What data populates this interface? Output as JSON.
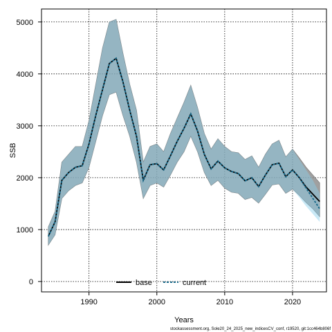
{
  "chart_data": {
    "type": "line",
    "xlabel": "Years",
    "ylabel": "SSB",
    "xlim": [
      1983,
      2025
    ],
    "ylim": [
      -200,
      5250
    ],
    "xticks": [
      1990,
      2000,
      2010,
      2020
    ],
    "yticks": [
      0,
      1000,
      2000,
      3000,
      4000,
      5000
    ],
    "grid": true,
    "legend_position": "bottom-center",
    "footnote": "stockassessment.org, Sole20_24_2025_new_indicesCV_conf, r19520, git:1cc464b806f",
    "x": [
      1984,
      1985,
      1986,
      1987,
      1988,
      1989,
      1990,
      1991,
      1992,
      1993,
      1994,
      1995,
      1996,
      1997,
      1998,
      1999,
      2000,
      2001,
      2002,
      2003,
      2004,
      2005,
      2006,
      2007,
      2008,
      2009,
      2010,
      2011,
      2012,
      2013,
      2014,
      2015,
      2016,
      2017,
      2018,
      2019,
      2020,
      2021,
      2022,
      2023,
      2024
    ],
    "series": [
      {
        "name": "base",
        "color": "#000000",
        "style": "solid",
        "band_color": "#808080",
        "values": [
          870,
          1150,
          1950,
          2100,
          2200,
          2230,
          2650,
          3200,
          3700,
          4200,
          4300,
          3850,
          3300,
          2800,
          1950,
          2250,
          2270,
          2150,
          2420,
          2700,
          2950,
          3230,
          2900,
          2450,
          2170,
          2320,
          2190,
          2120,
          2080,
          1940,
          2000,
          1830,
          2050,
          2250,
          2280,
          2020,
          2150,
          2000,
          1820,
          1680,
          1540
        ],
        "lower": [
          700,
          900,
          1600,
          1750,
          1850,
          1900,
          2200,
          2700,
          3200,
          3600,
          3650,
          3200,
          2800,
          2300,
          1600,
          1850,
          1900,
          1820,
          2050,
          2300,
          2500,
          2800,
          2500,
          2100,
          1850,
          1950,
          1800,
          1720,
          1700,
          1580,
          1620,
          1510,
          1680,
          1860,
          1880,
          1700,
          1780,
          1660,
          1520,
          1400,
          1250
        ],
        "upper": [
          1050,
          1350,
          2300,
          2450,
          2600,
          2600,
          3100,
          3800,
          4500,
          5000,
          5050,
          4400,
          3800,
          3300,
          2300,
          2600,
          2650,
          2500,
          2850,
          3150,
          3450,
          3780,
          3350,
          2850,
          2550,
          2750,
          2600,
          2500,
          2480,
          2350,
          2420,
          2200,
          2450,
          2650,
          2720,
          2400,
          2550,
          2380,
          2200,
          2050,
          1900
        ]
      },
      {
        "name": "current",
        "color": "#1a6a8a",
        "style": "dashed",
        "band_color": "#87ceeb",
        "values": [
          870,
          1150,
          1950,
          2100,
          2200,
          2230,
          2650,
          3200,
          3700,
          4200,
          4300,
          3850,
          3300,
          2800,
          1950,
          2250,
          2270,
          2150,
          2420,
          2700,
          2950,
          3230,
          2900,
          2450,
          2170,
          2320,
          2190,
          2120,
          2080,
          1940,
          2000,
          1830,
          2050,
          2250,
          2280,
          2020,
          2150,
          2000,
          1800,
          1600,
          1400
        ],
        "lower": [
          700,
          900,
          1600,
          1750,
          1850,
          1900,
          2200,
          2700,
          3200,
          3600,
          3650,
          3200,
          2800,
          2300,
          1600,
          1850,
          1900,
          1820,
          2050,
          2300,
          2500,
          2800,
          2500,
          2100,
          1850,
          1950,
          1800,
          1720,
          1700,
          1580,
          1620,
          1510,
          1680,
          1860,
          1880,
          1700,
          1780,
          1620,
          1450,
          1300,
          1150
        ],
        "upper": [
          1050,
          1350,
          2300,
          2450,
          2600,
          2600,
          3100,
          3800,
          4500,
          5000,
          5050,
          4400,
          3800,
          3300,
          2300,
          2600,
          2650,
          2500,
          2850,
          3150,
          3450,
          3780,
          3350,
          2850,
          2550,
          2750,
          2600,
          2500,
          2480,
          2350,
          2420,
          2200,
          2450,
          2650,
          2720,
          2400,
          2550,
          2350,
          2150,
          1950,
          1700
        ]
      }
    ]
  }
}
